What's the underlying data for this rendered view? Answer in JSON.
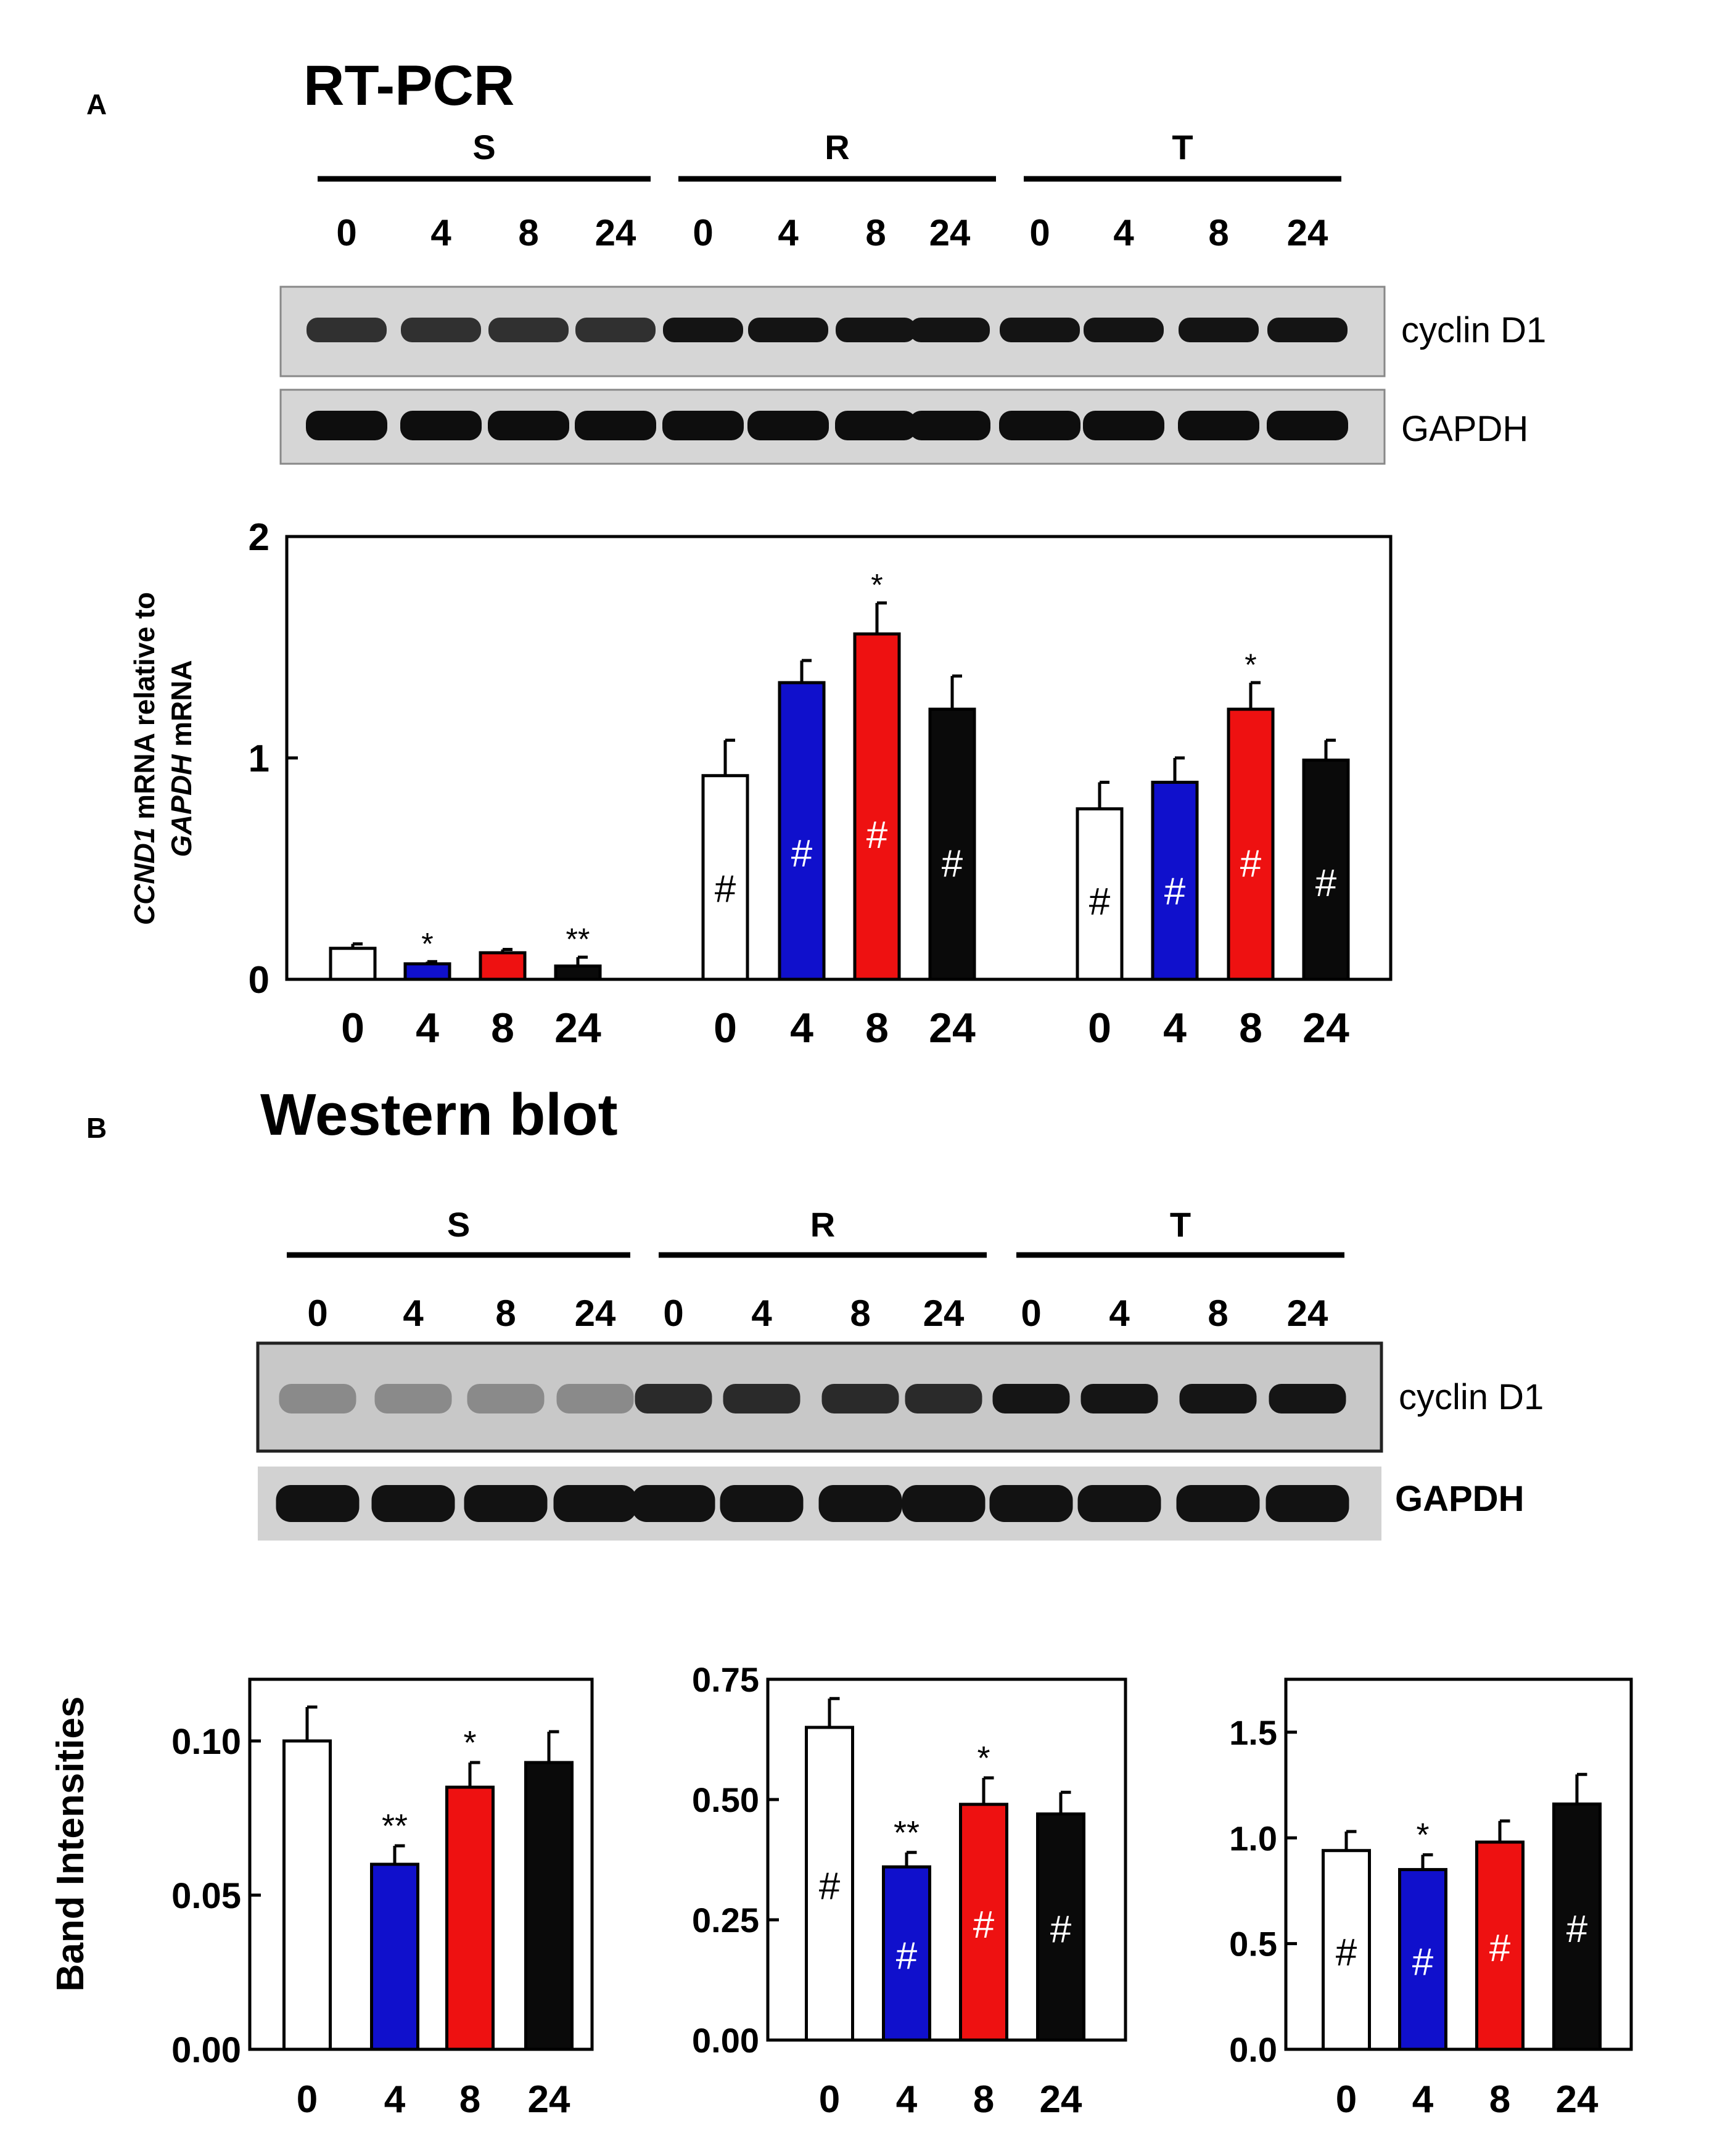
{
  "colors": {
    "white_bar": "#ffffff",
    "blue_bar": "#1010cc",
    "red_bar": "#ee1111",
    "black_bar": "#0a0a0a",
    "gel_bg": "#d6d6d6",
    "band": "#141414"
  },
  "panel_a": {
    "letter": "A",
    "title": "RT-PCR",
    "groups": [
      "S",
      "R",
      "T"
    ],
    "lane_labels": [
      "0",
      "4",
      "8",
      "24",
      "0",
      "4",
      "8",
      "24",
      "0",
      "4",
      "8",
      "24"
    ],
    "blot_labels": [
      "cyclin D1",
      "GAPDH"
    ]
  },
  "panel_b": {
    "letter": "B",
    "title": "Western blot",
    "groups": [
      "S",
      "R",
      "T"
    ],
    "lane_labels": [
      "0",
      "4",
      "8",
      "24",
      "0",
      "4",
      "8",
      "24",
      "0",
      "4",
      "8",
      "24"
    ],
    "blot_labels": [
      "cyclin D1",
      "GAPDH"
    ]
  },
  "chart_data": [
    {
      "id": "rtpcr",
      "type": "bar",
      "ylabel_parts": [
        "CCND1",
        " mRNA relative to",
        "GAPDH",
        " mRNA"
      ],
      "ylim": [
        0,
        2
      ],
      "yticks": [
        "0",
        "1",
        "2"
      ],
      "groups": [
        {
          "categories": [
            "0",
            "4",
            "8",
            "24"
          ],
          "values": [
            0.14,
            0.07,
            0.12,
            0.06
          ],
          "errors": [
            0.02,
            0.01,
            0.015,
            0.04
          ],
          "marks": [
            "",
            "*",
            "",
            "**"
          ],
          "hash": [
            false,
            false,
            false,
            false
          ]
        },
        {
          "categories": [
            "0",
            "4",
            "8",
            "24"
          ],
          "values": [
            0.92,
            1.34,
            1.56,
            1.22
          ],
          "errors": [
            0.16,
            0.1,
            0.14,
            0.15
          ],
          "marks": [
            "",
            "",
            "*",
            ""
          ],
          "hash": [
            true,
            true,
            true,
            true
          ]
        },
        {
          "categories": [
            "0",
            "4",
            "8",
            "24"
          ],
          "values": [
            0.77,
            0.89,
            1.22,
            0.99
          ],
          "errors": [
            0.12,
            0.11,
            0.12,
            0.09
          ],
          "marks": [
            "",
            "",
            "*",
            ""
          ],
          "hash": [
            true,
            true,
            true,
            true
          ]
        }
      ]
    },
    {
      "id": "wb_s",
      "type": "bar",
      "ylabel": "Band Intensities",
      "ylim": [
        0,
        0.12
      ],
      "yticks": [
        "0.00",
        "0.05",
        "0.10"
      ],
      "yticks_values": [
        0,
        0.05,
        0.1
      ],
      "categories": [
        "0",
        "4",
        "8",
        "24"
      ],
      "values": [
        0.1,
        0.06,
        0.085,
        0.093
      ],
      "errors": [
        0.011,
        0.006,
        0.008,
        0.01
      ],
      "marks": [
        "",
        "**",
        "*",
        ""
      ],
      "hash": [
        false,
        false,
        false,
        false
      ]
    },
    {
      "id": "wb_r",
      "type": "bar",
      "ylim": [
        0,
        0.75
      ],
      "yticks": [
        "0.00",
        "0.25",
        "0.50",
        "0.75"
      ],
      "yticks_values": [
        0,
        0.25,
        0.5,
        0.75
      ],
      "categories": [
        "0",
        "4",
        "8",
        "24"
      ],
      "values": [
        0.65,
        0.36,
        0.49,
        0.47
      ],
      "errors": [
        0.06,
        0.03,
        0.055,
        0.045
      ],
      "marks": [
        "",
        "**",
        "*",
        ""
      ],
      "hash": [
        true,
        true,
        true,
        true
      ]
    },
    {
      "id": "wb_t",
      "type": "bar",
      "ylim": [
        0,
        1.75
      ],
      "yticks": [
        "0.0",
        "0.5",
        "1.0",
        "1.5"
      ],
      "yticks_values": [
        0,
        0.5,
        1.0,
        1.5
      ],
      "categories": [
        "0",
        "4",
        "8",
        "24"
      ],
      "values": [
        0.94,
        0.85,
        0.98,
        1.16
      ],
      "errors": [
        0.09,
        0.07,
        0.1,
        0.14
      ],
      "marks": [
        "",
        "*",
        "",
        ""
      ],
      "hash": [
        true,
        true,
        true,
        true
      ]
    }
  ]
}
